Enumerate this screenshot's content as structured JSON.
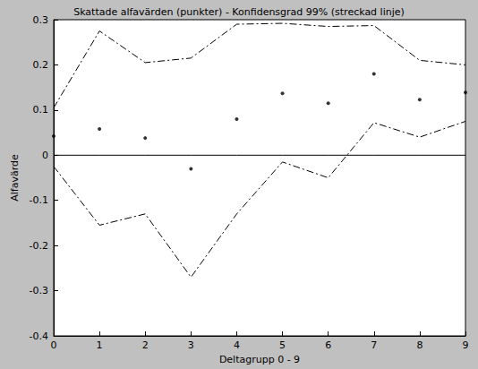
{
  "chart_data": {
    "type": "line",
    "title": "Skattade alfavärden (punkter) - Konfidensgrad 99% (streckad linje)",
    "x_label": "Deltagrupp 0 - 9",
    "y_label": "Alfavärde",
    "x": [
      0,
      1,
      2,
      3,
      4,
      5,
      6,
      7,
      8,
      9
    ],
    "series": [
      {
        "type": "line",
        "color": "#000000",
        "marker": "none",
        "line_style": "dashdot",
        "values": [
          0.105,
          0.275,
          0.205,
          0.215,
          0.29,
          0.292,
          0.285,
          0.287,
          0.21,
          0.2
        ]
      },
      {
        "type": "line",
        "color": "#000000",
        "marker": "none",
        "line_style": "dashdot",
        "values": [
          -0.025,
          -0.155,
          -0.13,
          -0.27,
          -0.13,
          -0.015,
          -0.05,
          0.072,
          0.04,
          0.075
        ]
      },
      {
        "type": "line",
        "color": "#000000",
        "marker": "none",
        "line_style": "solid",
        "values": [
          0,
          0,
          0,
          0,
          0,
          0,
          0,
          0,
          0,
          0
        ]
      },
      {
        "type": "scatter",
        "color": "#000000",
        "marker": "point",
        "values": [
          0.042,
          0.058,
          0.038,
          -0.03,
          0.08,
          0.137,
          0.115,
          0.18,
          0.123,
          0.139
        ]
      }
    ],
    "xlim": [
      0,
      9
    ],
    "xticks": [
      0,
      1,
      2,
      3,
      4,
      5,
      6,
      7,
      8,
      9
    ],
    "ylim": [
      -0.4,
      0.3
    ],
    "yticks": [
      -0.4,
      -0.3,
      -0.2,
      -0.1,
      0,
      0.1,
      0.2,
      0.3
    ],
    "grid": false
  }
}
